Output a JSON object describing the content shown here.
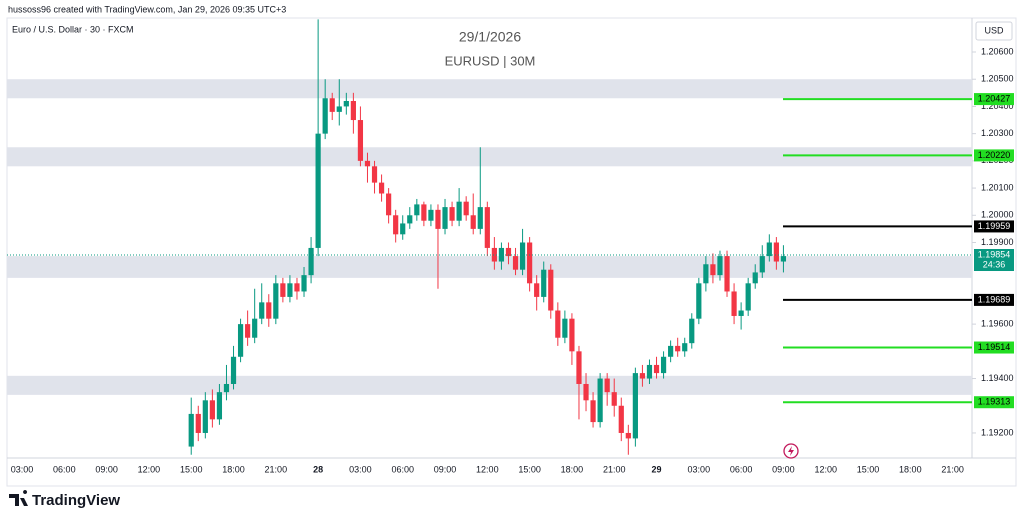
{
  "header": {
    "credit": "hussoss96 created with TradingView.com, Jan 29, 2026 09:35 UTC+3",
    "symbol": "Euro / U.S. Dollar · 30 · FXCM",
    "date": "29/1/2026",
    "title": "EURUSD | 30M",
    "currency": "USD"
  },
  "footer": {
    "brand": "TradingView"
  },
  "chart_data": {
    "type": "candlestick",
    "categories": [
      "03:00",
      null,
      null,
      null,
      null,
      null,
      "06:00",
      null,
      null,
      null,
      null,
      null,
      "09:00",
      null,
      null,
      null,
      null,
      null,
      "12:00",
      null,
      null,
      null,
      null,
      null,
      "15:00",
      null,
      null,
      null,
      null,
      null,
      "18:00",
      null,
      null,
      null,
      null,
      null,
      "21:00",
      null,
      null,
      null,
      null,
      null,
      "28",
      null,
      null,
      null,
      null,
      null,
      "03:00",
      null,
      null,
      null,
      null,
      null,
      "06:00",
      null,
      null,
      null,
      null,
      null,
      "09:00",
      null,
      null,
      null,
      null,
      null,
      "12:00",
      null,
      null,
      null,
      null,
      null,
      "15:00",
      null,
      null,
      null,
      null,
      null,
      "18:00",
      null,
      null,
      null,
      null,
      null,
      "21:00",
      null,
      null,
      null,
      null,
      null,
      "29",
      null,
      null,
      null,
      null,
      null,
      "03:00",
      null,
      null,
      null,
      null,
      null,
      "06:00",
      null,
      null,
      null,
      null,
      null,
      "09:00",
      null,
      null,
      null,
      null,
      null,
      "12:00",
      null,
      null,
      null,
      null,
      null,
      "15:00",
      null,
      null,
      null,
      null,
      null,
      "18:00",
      null,
      null,
      null,
      null,
      null,
      "21:00",
      null,
      null
    ],
    "open": [
      null,
      null,
      null,
      null,
      null,
      null,
      null,
      null,
      null,
      null,
      null,
      null,
      null,
      null,
      null,
      null,
      null,
      null,
      null,
      null,
      null,
      null,
      null,
      null,
      1.1915,
      1.1927,
      1.192,
      1.1932,
      1.1925,
      1.1935,
      1.1938,
      1.1948,
      1.196,
      1.1955,
      1.1962,
      1.1968,
      1.1962,
      1.1975,
      1.197,
      1.1975,
      1.1972,
      1.1978,
      1.1988,
      1.203,
      1.2043,
      1.2038,
      1.204,
      1.2042,
      1.2035,
      1.202,
      1.2018,
      1.2012,
      1.2008,
      1.2,
      1.1993,
      1.1997,
      1.2,
      1.2004,
      1.1998,
      1.2002,
      1.1995,
      1.2003,
      1.1998,
      1.2005,
      1.2,
      1.1995,
      1.2003,
      1.1988,
      1.1983,
      1.1988,
      1.1985,
      1.198,
      1.199,
      1.1975,
      1.197,
      1.198,
      1.1965,
      1.1955,
      1.1962,
      1.195,
      1.1938,
      1.1932,
      1.1924,
      1.194,
      1.1935,
      1.193,
      1.192,
      1.1918,
      1.1942,
      1.194,
      1.1945,
      1.1942,
      1.1948,
      1.1952,
      1.195,
      1.1953,
      1.1962,
      1.1975,
      1.1982,
      1.1978,
      1.1985,
      1.1972,
      1.1963,
      1.1965,
      1.1975,
      1.1979,
      1.1985,
      1.199,
      1.1983,
      null,
      null,
      null,
      null,
      null,
      null,
      null,
      null,
      null,
      null,
      null,
      null,
      null,
      null,
      null,
      null,
      null,
      null,
      null,
      null,
      null,
      null,
      null,
      null,
      null,
      null
    ],
    "high": [
      null,
      null,
      null,
      null,
      null,
      null,
      null,
      null,
      null,
      null,
      null,
      null,
      null,
      null,
      null,
      null,
      null,
      null,
      null,
      null,
      null,
      null,
      null,
      null,
      1.1933,
      1.193,
      1.1935,
      1.1936,
      1.1938,
      1.1945,
      1.1952,
      1.1962,
      1.1965,
      1.1973,
      1.1975,
      1.1971,
      1.1978,
      1.1977,
      1.1978,
      1.1977,
      1.1981,
      1.1992,
      1.2072,
      1.205,
      1.2045,
      1.205,
      1.2045,
      1.2045,
      1.204,
      1.2023,
      1.202,
      1.2015,
      1.201,
      1.2002,
      1.2,
      1.2003,
      1.2006,
      1.2005,
      1.2004,
      1.2004,
      1.2006,
      1.2005,
      1.201,
      1.2007,
      1.2008,
      1.2025,
      1.2005,
      1.1992,
      1.199,
      1.199,
      1.1988,
      1.1995,
      1.1992,
      1.1978,
      1.1983,
      1.1982,
      1.1968,
      1.1965,
      1.1964,
      1.1952,
      1.1942,
      1.1935,
      1.1942,
      1.1942,
      1.194,
      1.1933,
      1.1923,
      1.1944,
      1.1945,
      1.1947,
      1.1948,
      1.195,
      1.1954,
      1.1955,
      1.1955,
      1.1964,
      1.1977,
      1.1985,
      1.1986,
      1.1987,
      1.1987,
      1.1975,
      1.1968,
      1.1977,
      1.1982,
      1.1989,
      1.1993,
      1.1992,
      1.1989,
      null,
      null,
      null,
      null,
      null,
      null,
      null,
      null,
      null,
      null,
      null,
      null,
      null,
      null,
      null,
      null,
      null,
      null,
      null,
      null,
      null,
      null,
      null,
      null,
      null,
      null
    ],
    "low": [
      null,
      null,
      null,
      null,
      null,
      null,
      null,
      null,
      null,
      null,
      null,
      null,
      null,
      null,
      null,
      null,
      null,
      null,
      null,
      null,
      null,
      null,
      null,
      null,
      1.1912,
      1.1917,
      1.1918,
      1.1922,
      1.1923,
      1.1932,
      1.1936,
      1.1946,
      1.1952,
      1.1953,
      1.196,
      1.1959,
      1.196,
      1.1968,
      1.1968,
      1.1969,
      1.197,
      1.1975,
      1.1985,
      1.2028,
      1.2035,
      1.2033,
      1.2037,
      1.203,
      1.2018,
      1.2012,
      1.2008,
      1.2005,
      1.1997,
      1.199,
      1.1991,
      1.1995,
      1.1998,
      1.1996,
      1.1996,
      1.1973,
      1.1993,
      1.1996,
      1.1996,
      1.1998,
      1.1993,
      1.1993,
      1.1985,
      1.198,
      1.198,
      1.1982,
      1.1978,
      1.1978,
      1.1972,
      1.1965,
      1.1968,
      1.1962,
      1.1952,
      1.1953,
      1.1945,
      1.1925,
      1.1928,
      1.1922,
      1.1922,
      1.193,
      1.1926,
      1.1917,
      1.1912,
      1.1915,
      1.1937,
      1.1938,
      1.194,
      1.194,
      1.1946,
      1.1948,
      1.1948,
      1.1951,
      1.196,
      1.1972,
      1.1975,
      1.1976,
      1.197,
      1.196,
      1.1958,
      1.1963,
      1.1973,
      1.1977,
      1.1983,
      1.198,
      1.1979,
      null,
      null,
      null,
      null,
      null,
      null,
      null,
      null,
      null,
      null,
      null,
      null,
      null,
      null,
      null,
      null,
      null,
      null,
      null,
      null,
      null,
      null,
      null,
      null,
      null,
      null
    ],
    "close": [
      null,
      null,
      null,
      null,
      null,
      null,
      null,
      null,
      null,
      null,
      null,
      null,
      null,
      null,
      null,
      null,
      null,
      null,
      null,
      null,
      null,
      null,
      null,
      null,
      1.1927,
      1.192,
      1.1932,
      1.1925,
      1.1935,
      1.1938,
      1.1948,
      1.196,
      1.1955,
      1.1962,
      1.1968,
      1.1962,
      1.1975,
      1.197,
      1.1975,
      1.1972,
      1.1978,
      1.1988,
      1.203,
      1.2043,
      1.2038,
      1.204,
      1.2042,
      1.2035,
      1.202,
      1.2018,
      1.2012,
      1.2008,
      1.2,
      1.1993,
      1.1997,
      1.2,
      1.2004,
      1.1998,
      1.2002,
      1.1995,
      1.2003,
      1.1998,
      1.2005,
      1.2,
      1.1995,
      1.2003,
      1.1988,
      1.1983,
      1.1988,
      1.1985,
      1.198,
      1.199,
      1.1975,
      1.197,
      1.198,
      1.1965,
      1.1955,
      1.1962,
      1.195,
      1.1938,
      1.1932,
      1.1924,
      1.194,
      1.1935,
      1.193,
      1.192,
      1.1918,
      1.1942,
      1.194,
      1.1945,
      1.1942,
      1.1948,
      1.1952,
      1.195,
      1.1953,
      1.1962,
      1.1975,
      1.1982,
      1.1978,
      1.1985,
      1.1972,
      1.1963,
      1.1965,
      1.1975,
      1.1979,
      1.1985,
      1.199,
      1.1983,
      1.1985,
      null,
      null,
      null,
      null,
      null,
      null,
      null,
      null,
      null,
      null,
      null,
      null,
      null,
      null,
      null,
      null,
      null,
      null,
      null,
      null,
      null,
      null,
      null,
      null,
      null,
      null
    ],
    "up_color": "#089981",
    "down_color": "#f23645",
    "ylim": [
      1.19108,
      1.20725
    ],
    "yticks": [
      {
        "value": 1.206,
        "label": "1.20600"
      },
      {
        "value": 1.205,
        "label": "1.20500"
      },
      {
        "value": 1.204,
        "label": "1.20400"
      },
      {
        "value": 1.203,
        "label": "1.20300"
      },
      {
        "value": 1.202,
        "label": "1.20200"
      },
      {
        "value": 1.201,
        "label": "1.20100"
      },
      {
        "value": 1.2,
        "label": "1.20000"
      },
      {
        "value": 1.199,
        "label": "1.19900"
      },
      {
        "value": 1.196,
        "label": "1.19600"
      },
      {
        "value": 1.194,
        "label": "1.19400"
      },
      {
        "value": 1.192,
        "label": "1.19200"
      }
    ],
    "zones": [
      [
        1.2043,
        1.205
      ],
      [
        1.2018,
        1.2025
      ],
      [
        1.1977,
        1.1985
      ],
      [
        1.1934,
        1.1941
      ]
    ],
    "zone_color": "#e0e3eb",
    "levels": [
      {
        "value": 1.20427,
        "color": "#22dd22"
      },
      {
        "value": {
          "value": 1.2022,
          "label": "1.20220"
        },
        "color": "#22dd22"
      },
      {
        "value": 1.19959,
        "color": "#000000"
      },
      {
        "value": 1.19689,
        "color": "#000000"
      },
      {
        "value": 1.19514,
        "color": "#22dd22"
      },
      {
        "value": 1.19313,
        "color": "#22dd22"
      }
    ],
    "last_price": 1.19854,
    "countdown": "24:36"
  }
}
